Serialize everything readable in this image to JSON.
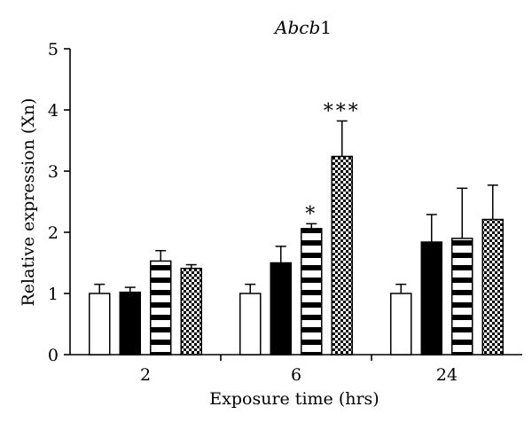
{
  "chart_data": {
    "type": "bar",
    "title_parts": [
      {
        "text": "Abcb",
        "italic": true
      },
      {
        "text": "1",
        "italic": false
      }
    ],
    "xlabel": "Exposure time (hrs)",
    "ylabel": "Relative expression (Xn)",
    "categories": [
      "2",
      "6",
      "24"
    ],
    "ylim": [
      0,
      5
    ],
    "yticks": [
      0,
      1,
      2,
      3,
      4,
      5
    ],
    "series": [
      {
        "pattern": "white",
        "values": [
          1.0,
          1.0,
          1.0
        ],
        "errors": [
          0.15,
          0.15,
          0.15
        ],
        "annotations": [
          "",
          "",
          ""
        ]
      },
      {
        "pattern": "black",
        "values": [
          1.02,
          1.5,
          1.84
        ],
        "errors": [
          0.08,
          0.27,
          0.45
        ],
        "annotations": [
          "",
          "",
          ""
        ]
      },
      {
        "pattern": "stripes",
        "values": [
          1.53,
          2.06,
          1.9
        ],
        "errors": [
          0.17,
          0.08,
          0.82
        ],
        "annotations": [
          "",
          "*",
          ""
        ]
      },
      {
        "pattern": "checker",
        "values": [
          1.41,
          3.24,
          2.21
        ],
        "errors": [
          0.06,
          0.58,
          0.56
        ],
        "annotations": [
          "",
          "***",
          ""
        ]
      }
    ]
  }
}
